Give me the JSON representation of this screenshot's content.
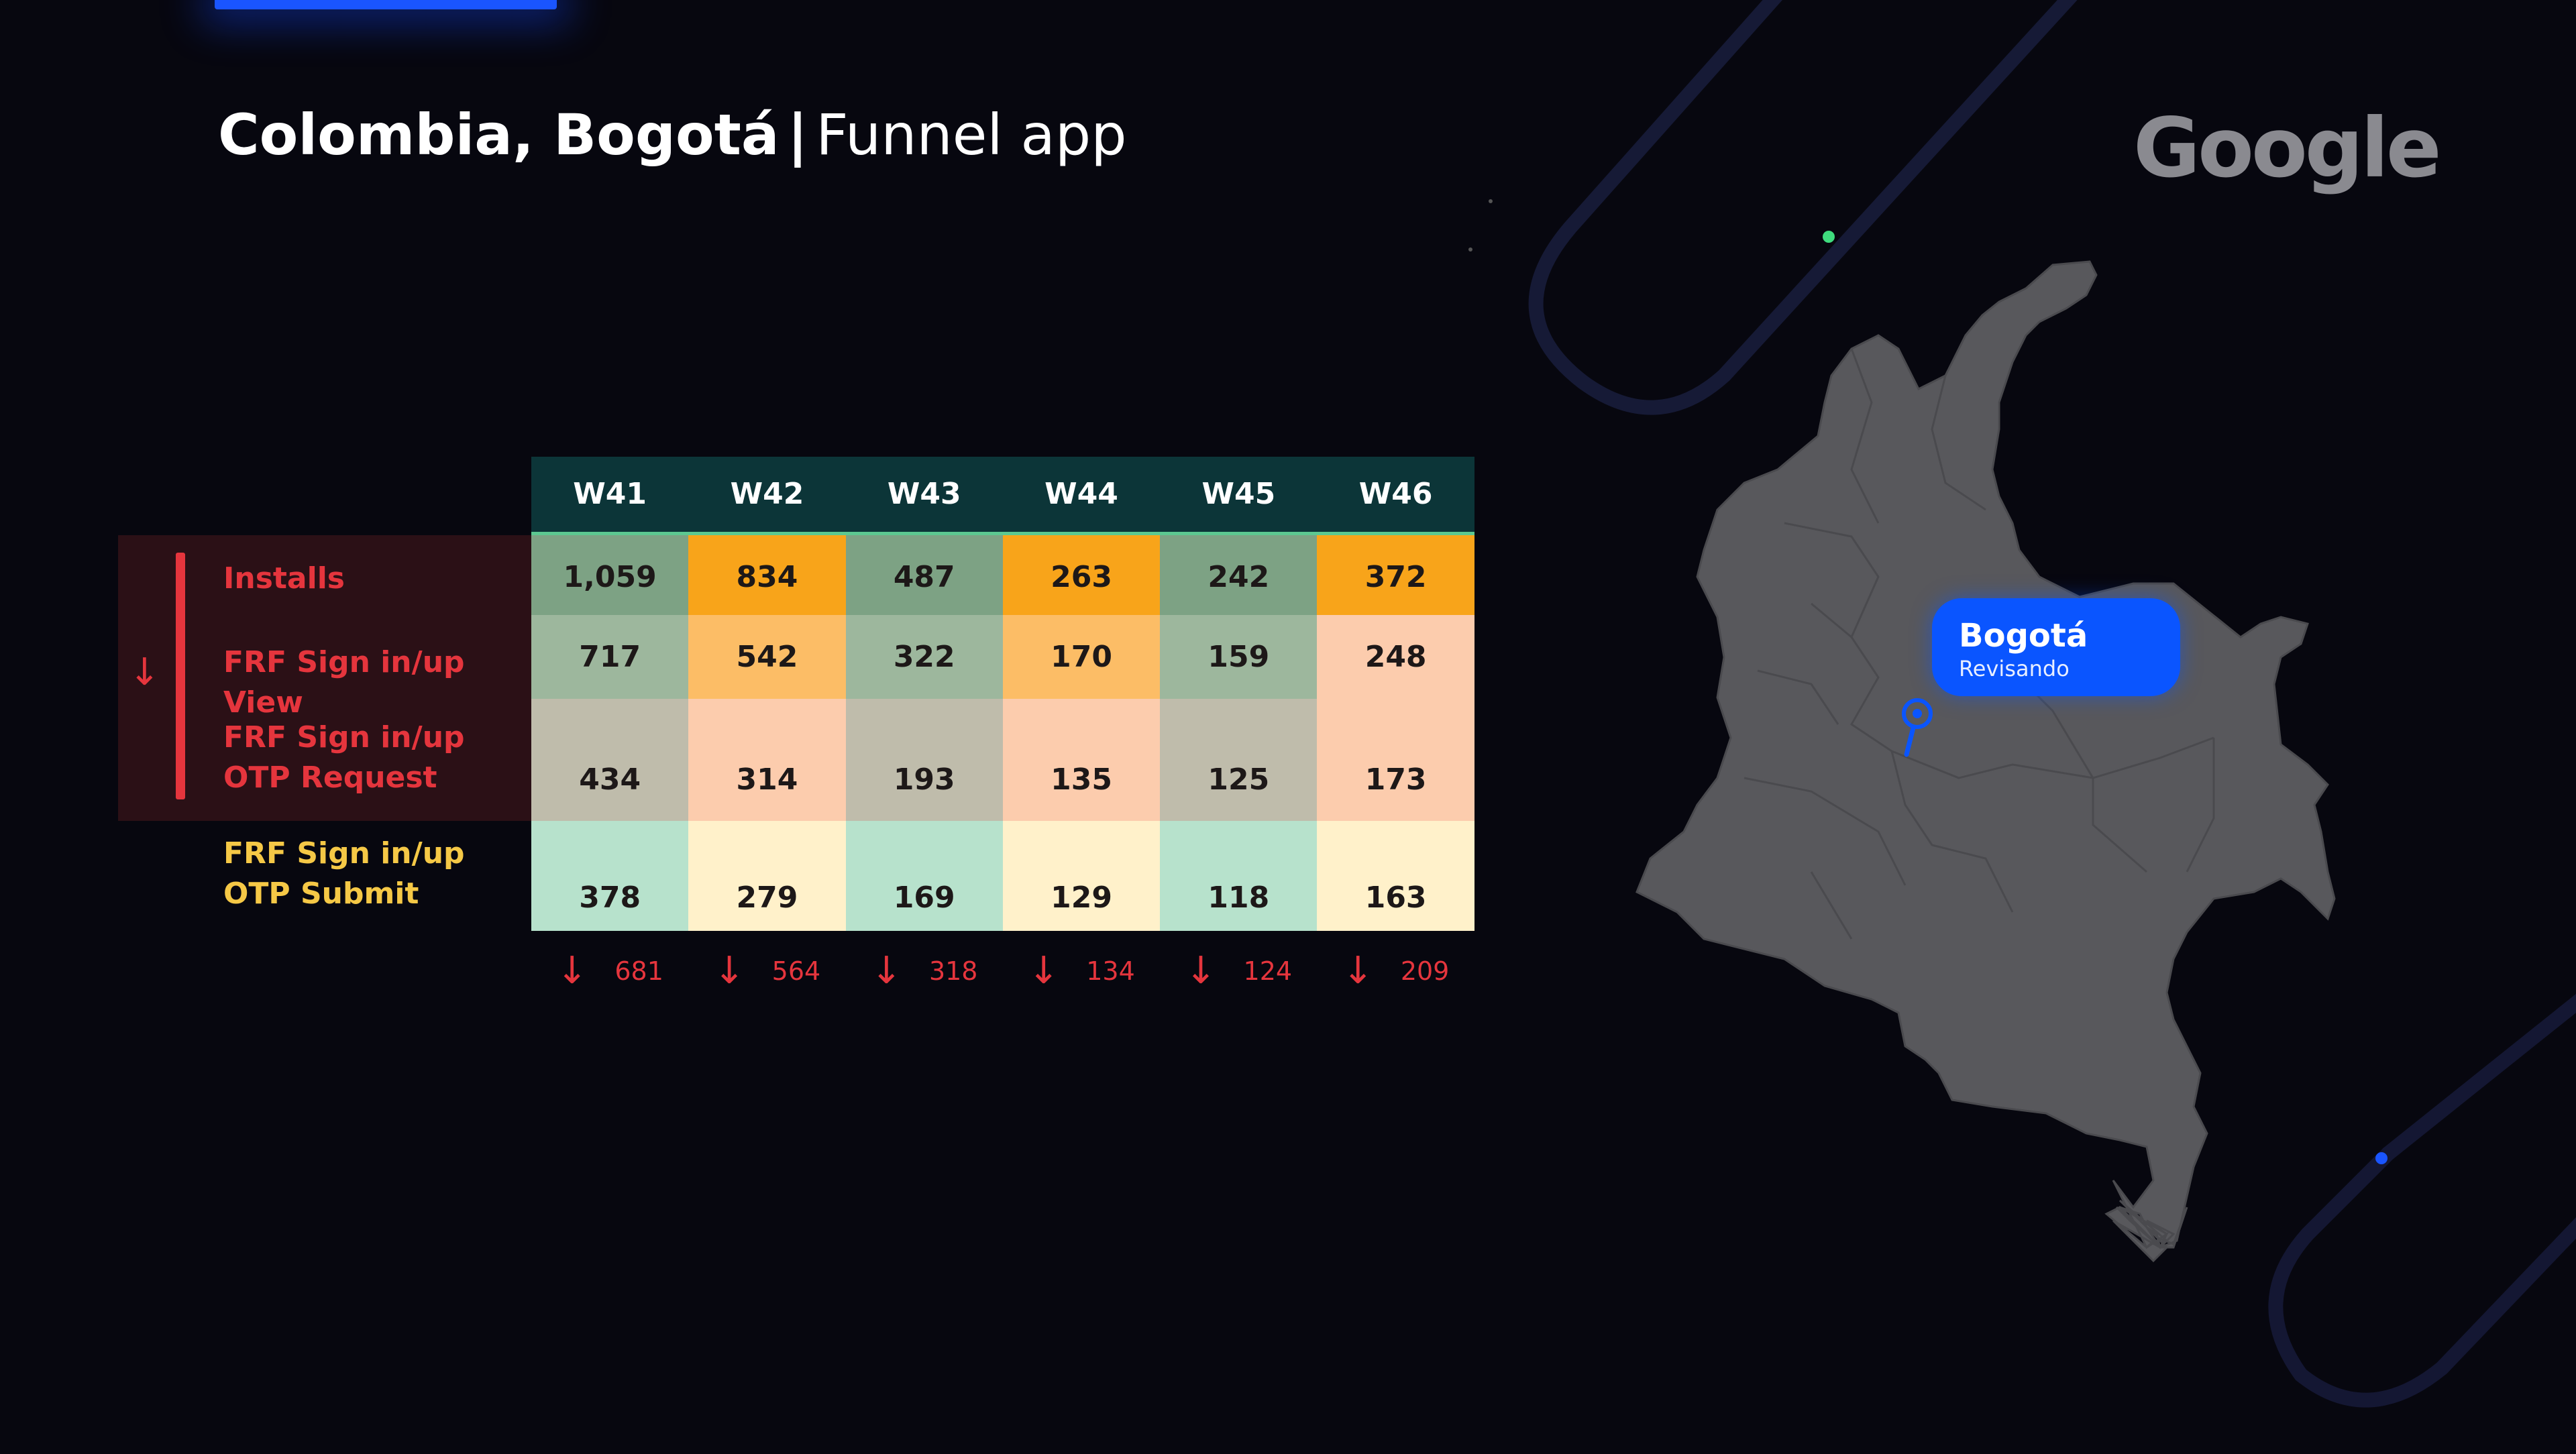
{
  "header": {
    "title_bold": "Colombia, Bogotá",
    "separator": "|",
    "title_light": "Funnel app",
    "logo_text": "Google"
  },
  "funnel": {
    "weeks": [
      "W41",
      "W42",
      "W43",
      "W44",
      "W45",
      "W46"
    ],
    "rows": [
      {
        "label": "Installs",
        "values": [
          "1,059",
          "834",
          "487",
          "263",
          "242",
          "372"
        ]
      },
      {
        "label": "FRF Sign in/up View",
        "values": [
          "717",
          "542",
          "322",
          "170",
          "159",
          "248"
        ]
      },
      {
        "label": "FRF Sign in/up OTP Request",
        "values": [
          "434",
          "314",
          "193",
          "135",
          "125",
          "173"
        ]
      },
      {
        "label": "FRF Sign in/up OTP Submit",
        "values": [
          "378",
          "279",
          "169",
          "129",
          "118",
          "163"
        ]
      }
    ],
    "drops": [
      "681",
      "564",
      "318",
      "134",
      "124",
      "209"
    ],
    "drop_icon": "arrow-down-icon"
  },
  "map": {
    "region": "Colombia",
    "pin_icon": "location-pin-icon",
    "callout_city": "Bogotá",
    "callout_status": "Revisando"
  },
  "colors": {
    "background": "#07070f",
    "accent_red": "#e5353d",
    "accent_yellow": "#f5c846",
    "accent_blue": "#0a55ff",
    "header_teal": "#0c3538",
    "row_colors_odd": [
      "#7da284",
      "#9db79d",
      "#bfbcab",
      "#b7e2cc"
    ],
    "row_colors_even": [
      "#f8a41a",
      "#fcbd66",
      "#fcccad",
      "#fff1ca"
    ]
  }
}
